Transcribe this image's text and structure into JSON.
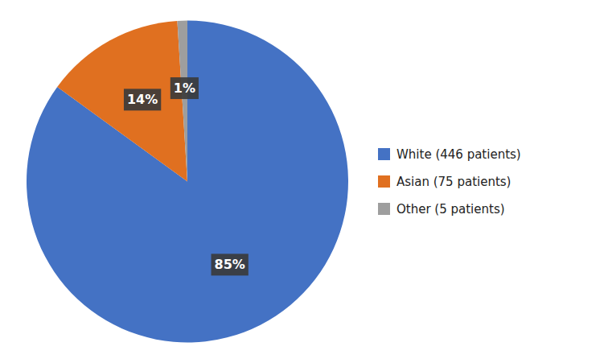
{
  "chart_data": {
    "type": "pie",
    "categories": [
      "White (446 patients)",
      "Asian (75 patients)",
      "Other (5 patients)"
    ],
    "values": [
      85,
      14,
      1
    ],
    "value_labels": [
      "85%",
      "14%",
      "1%"
    ],
    "colors": [
      "#4472C4",
      "#E07020",
      "#9E9E9E"
    ],
    "data_labels": true,
    "legend": "right"
  }
}
